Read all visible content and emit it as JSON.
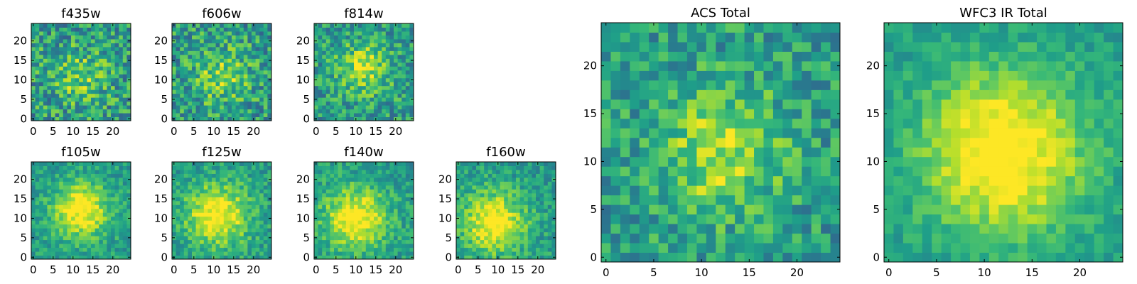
{
  "chart_data": [
    {
      "type": "heatmap",
      "title": "f435w",
      "grid_size": 25,
      "extent": [
        0,
        24
      ],
      "xticks": [
        0,
        5,
        10,
        15,
        20
      ],
      "yticks": [
        0,
        5,
        10,
        15,
        20
      ],
      "colormap": "viridis",
      "peak": [
        12,
        11
      ],
      "blob_strength": 0.25,
      "blob_sigma": 4.5,
      "noise": 0.26
    },
    {
      "type": "heatmap",
      "title": "f606w",
      "grid_size": 25,
      "extent": [
        0,
        24
      ],
      "xticks": [
        0,
        5,
        10,
        15,
        20
      ],
      "yticks": [
        0,
        5,
        10,
        15,
        20
      ],
      "colormap": "viridis",
      "peak": [
        12,
        11
      ],
      "blob_strength": 0.28,
      "blob_sigma": 4.5,
      "noise": 0.25
    },
    {
      "type": "heatmap",
      "title": "f814w",
      "grid_size": 25,
      "extent": [
        0,
        24
      ],
      "xticks": [
        0,
        5,
        10,
        15,
        20
      ],
      "yticks": [
        0,
        5,
        10,
        15,
        20
      ],
      "colormap": "viridis",
      "peak": [
        12,
        13
      ],
      "blob_strength": 0.35,
      "blob_sigma": 4.5,
      "noise": 0.22
    },
    {
      "type": "heatmap",
      "title": "f105w",
      "grid_size": 25,
      "extent": [
        0,
        24
      ],
      "xticks": [
        0,
        5,
        10,
        15,
        20
      ],
      "yticks": [
        0,
        5,
        10,
        15,
        20
      ],
      "colormap": "viridis",
      "peak": [
        12,
        12
      ],
      "blob_strength": 0.5,
      "blob_sigma": 5.0,
      "noise": 0.14
    },
    {
      "type": "heatmap",
      "title": "f125w",
      "grid_size": 25,
      "extent": [
        0,
        24
      ],
      "xticks": [
        0,
        5,
        10,
        15,
        20
      ],
      "yticks": [
        0,
        5,
        10,
        15,
        20
      ],
      "colormap": "viridis",
      "peak": [
        11,
        11
      ],
      "blob_strength": 0.5,
      "blob_sigma": 5.5,
      "noise": 0.15
    },
    {
      "type": "heatmap",
      "title": "f140w",
      "grid_size": 25,
      "extent": [
        0,
        24
      ],
      "xticks": [
        0,
        5,
        10,
        15,
        20
      ],
      "yticks": [
        0,
        5,
        10,
        15,
        20
      ],
      "colormap": "viridis",
      "peak": [
        10,
        10
      ],
      "blob_strength": 0.5,
      "blob_sigma": 5.5,
      "noise": 0.15
    },
    {
      "type": "heatmap",
      "title": "f160w",
      "grid_size": 25,
      "extent": [
        0,
        24
      ],
      "xticks": [
        0,
        5,
        10,
        15,
        20
      ],
      "yticks": [
        0,
        5,
        10,
        15,
        20
      ],
      "colormap": "viridis",
      "peak": [
        9,
        9
      ],
      "blob_strength": 0.5,
      "blob_sigma": 5.5,
      "noise": 0.15
    },
    {
      "type": "heatmap",
      "title": "ACS Total",
      "grid_size": 25,
      "extent": [
        0,
        24
      ],
      "xticks": [
        0,
        5,
        10,
        15,
        20
      ],
      "yticks": [
        0,
        5,
        10,
        15,
        20
      ],
      "colormap": "viridis",
      "peak": [
        12,
        11
      ],
      "blob_strength": 0.35,
      "blob_sigma": 4.5,
      "noise": 0.2
    },
    {
      "type": "heatmap",
      "title": "WFC3 IR Total",
      "grid_size": 25,
      "extent": [
        0,
        24
      ],
      "xticks": [
        0,
        5,
        10,
        15,
        20
      ],
      "yticks": [
        0,
        5,
        10,
        15,
        20
      ],
      "colormap": "viridis",
      "peak": [
        12,
        11
      ],
      "blob_strength": 0.55,
      "blob_sigma": 6.0,
      "noise": 0.1
    }
  ]
}
